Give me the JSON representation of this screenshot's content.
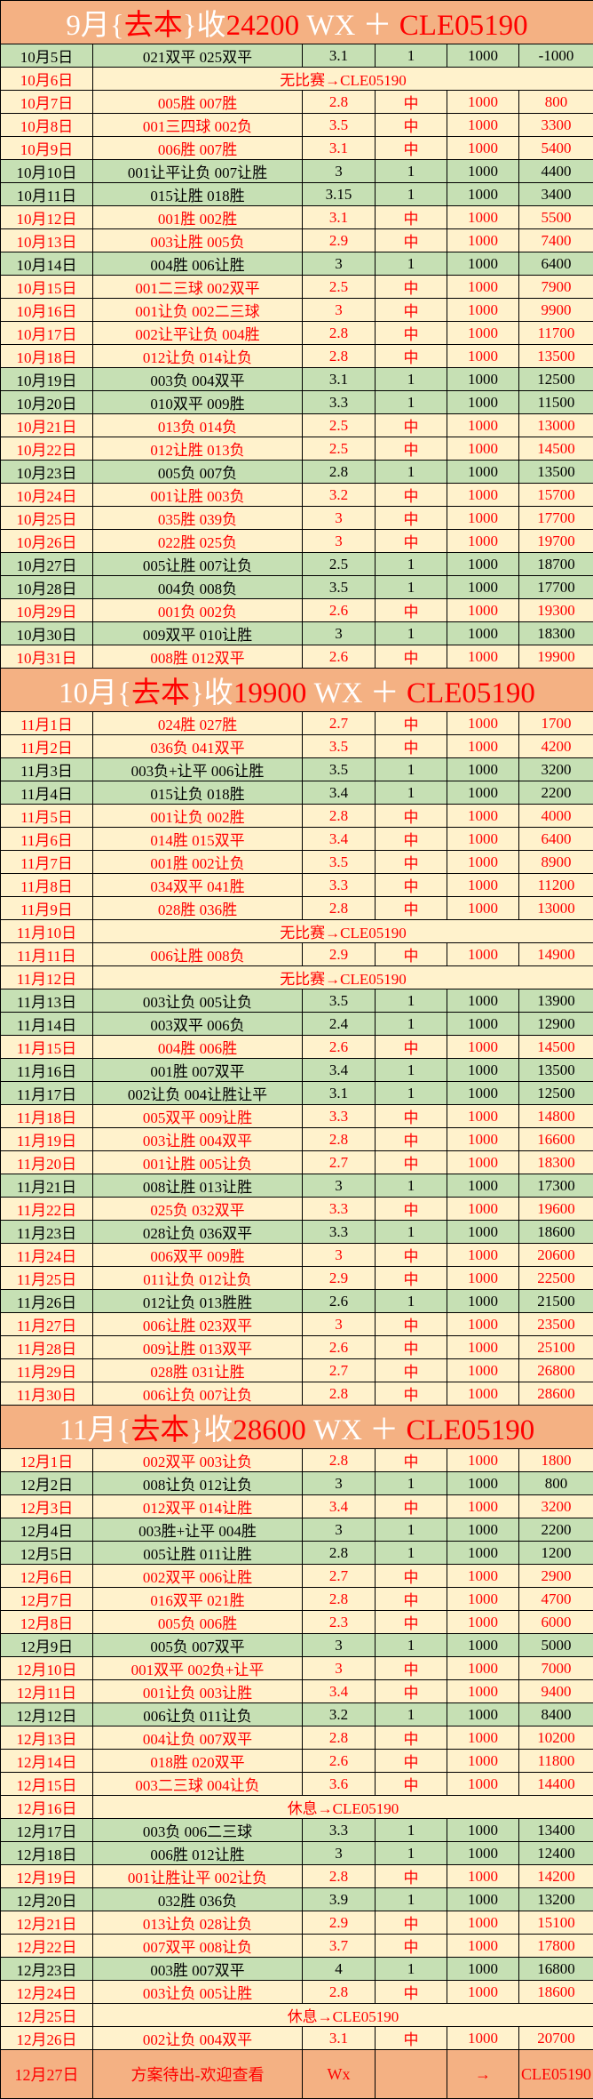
{
  "colors": {
    "header_bg": "#F4B183",
    "win_bg": "#FFF2CC",
    "loss_bg": "#C6E0B4",
    "win_text": "#FF0000",
    "loss_text": "#000000"
  },
  "sections": [
    {
      "title_parts": [
        {
          "t": "9月",
          "c": "white"
        },
        {
          "t": "{",
          "c": "white"
        },
        {
          "t": "去本",
          "c": "red"
        },
        {
          "t": "}收",
          "c": "white"
        },
        {
          "t": "24200",
          "c": "red"
        },
        {
          "t": " WX ＋ ",
          "c": "white"
        },
        {
          "t": "CLE05190",
          "c": "red"
        }
      ],
      "rows": [
        {
          "type": "loss",
          "cells": [
            "10月5日",
            "021双平 025双平",
            "3.1",
            "1",
            "1000",
            "-1000"
          ]
        },
        {
          "type": "note",
          "cells": [
            "10月6日",
            "无比赛→CLE05190"
          ]
        },
        {
          "type": "win",
          "cells": [
            "10月7日",
            "005胜 007胜",
            "2.8",
            "中",
            "1000",
            "800"
          ]
        },
        {
          "type": "win",
          "cells": [
            "10月8日",
            "001三四球 002负",
            "3.5",
            "中",
            "1000",
            "3300"
          ]
        },
        {
          "type": "win",
          "cells": [
            "10月9日",
            "006胜 007胜",
            "3.1",
            "中",
            "1000",
            "5400"
          ]
        },
        {
          "type": "loss",
          "cells": [
            "10月10日",
            "001让平让负 007让胜",
            "3",
            "1",
            "1000",
            "4400"
          ]
        },
        {
          "type": "loss",
          "cells": [
            "10月11日",
            "015让胜 018胜",
            "3.15",
            "1",
            "1000",
            "3400"
          ]
        },
        {
          "type": "win",
          "cells": [
            "10月12日",
            "001胜 002胜",
            "3.1",
            "中",
            "1000",
            "5500"
          ]
        },
        {
          "type": "win",
          "cells": [
            "10月13日",
            "003让胜 005负",
            "2.9",
            "中",
            "1000",
            "7400"
          ]
        },
        {
          "type": "loss",
          "cells": [
            "10月14日",
            "004胜 006让胜",
            "3",
            "1",
            "1000",
            "6400"
          ]
        },
        {
          "type": "win",
          "cells": [
            "10月15日",
            "001二三球 002双平",
            "2.5",
            "中",
            "1000",
            "7900"
          ]
        },
        {
          "type": "win",
          "cells": [
            "10月16日",
            "001让负 002二三球",
            "3",
            "中",
            "1000",
            "9900"
          ]
        },
        {
          "type": "win",
          "cells": [
            "10月17日",
            "002让平让负 004胜",
            "2.8",
            "中",
            "1000",
            "11700"
          ]
        },
        {
          "type": "win",
          "cells": [
            "10月18日",
            "012让负 014让负",
            "2.8",
            "中",
            "1000",
            "13500"
          ]
        },
        {
          "type": "loss",
          "cells": [
            "10月19日",
            "003负 004双平",
            "3.1",
            "1",
            "1000",
            "12500"
          ]
        },
        {
          "type": "loss",
          "cells": [
            "10月20日",
            "010双平 009胜",
            "3.3",
            "1",
            "1000",
            "11500"
          ]
        },
        {
          "type": "win",
          "cells": [
            "10月21日",
            "013负 014负",
            "2.5",
            "中",
            "1000",
            "13000"
          ]
        },
        {
          "type": "win",
          "cells": [
            "10月22日",
            "012让胜 013负",
            "2.5",
            "中",
            "1000",
            "14500"
          ]
        },
        {
          "type": "loss",
          "cells": [
            "10月23日",
            "005负 007负",
            "2.8",
            "1",
            "1000",
            "13500"
          ]
        },
        {
          "type": "win",
          "cells": [
            "10月24日",
            "001让胜 003负",
            "3.2",
            "中",
            "1000",
            "15700"
          ]
        },
        {
          "type": "win",
          "cells": [
            "10月25日",
            "035胜 039负",
            "3",
            "中",
            "1000",
            "17700"
          ]
        },
        {
          "type": "win",
          "cells": [
            "10月26日",
            "022胜 025负",
            "3",
            "中",
            "1000",
            "19700"
          ]
        },
        {
          "type": "loss",
          "cells": [
            "10月27日",
            "005让胜 007让负",
            "2.5",
            "1",
            "1000",
            "18700"
          ]
        },
        {
          "type": "loss",
          "cells": [
            "10月28日",
            "004负 008负",
            "3.5",
            "1",
            "1000",
            "17700"
          ]
        },
        {
          "type": "win",
          "cells": [
            "10月29日",
            "001负 002负",
            "2.6",
            "中",
            "1000",
            "19300"
          ]
        },
        {
          "type": "loss",
          "cells": [
            "10月30日",
            "009双平 010让胜",
            "3",
            "1",
            "1000",
            "18300"
          ]
        },
        {
          "type": "win",
          "cells": [
            "10月31日",
            "008胜 012双平",
            "2.6",
            "中",
            "1000",
            "19900"
          ]
        }
      ]
    },
    {
      "title_parts": [
        {
          "t": "10月",
          "c": "white"
        },
        {
          "t": "{",
          "c": "white"
        },
        {
          "t": "去本",
          "c": "red"
        },
        {
          "t": "}收",
          "c": "white"
        },
        {
          "t": "19900",
          "c": "red"
        },
        {
          "t": " WX ＋ ",
          "c": "white"
        },
        {
          "t": "CLE05190",
          "c": "red"
        }
      ],
      "rows": [
        {
          "type": "win",
          "cells": [
            "11月1日",
            "024胜 027胜",
            "2.7",
            "中",
            "1000",
            "1700"
          ]
        },
        {
          "type": "win",
          "cells": [
            "11月2日",
            "036负 041双平",
            "3.5",
            "中",
            "1000",
            "4200"
          ]
        },
        {
          "type": "loss",
          "cells": [
            "11月3日",
            "003负+让平 006让胜",
            "3.5",
            "1",
            "1000",
            "3200"
          ]
        },
        {
          "type": "loss",
          "cells": [
            "11月4日",
            "015让负 018胜",
            "3.4",
            "1",
            "1000",
            "2200"
          ]
        },
        {
          "type": "win",
          "cells": [
            "11月5日",
            "001让负 002胜",
            "2.8",
            "中",
            "1000",
            "4000"
          ]
        },
        {
          "type": "win",
          "cells": [
            "11月6日",
            "014胜 015双平",
            "3.4",
            "中",
            "1000",
            "6400"
          ]
        },
        {
          "type": "win",
          "cells": [
            "11月7日",
            "001胜 002让负",
            "3.5",
            "中",
            "1000",
            "8900"
          ]
        },
        {
          "type": "win",
          "cells": [
            "11月8日",
            "034双平 041胜",
            "3.3",
            "中",
            "1000",
            "11200"
          ]
        },
        {
          "type": "win",
          "cells": [
            "11月9日",
            "028胜 036胜",
            "2.8",
            "中",
            "1000",
            "13000"
          ]
        },
        {
          "type": "note",
          "cells": [
            "11月10日",
            "无比赛→CLE05190"
          ]
        },
        {
          "type": "win",
          "cells": [
            "11月11日",
            "006让胜 008负",
            "2.9",
            "中",
            "1000",
            "14900"
          ]
        },
        {
          "type": "note",
          "cells": [
            "11月12日",
            "无比赛→CLE05190"
          ]
        },
        {
          "type": "loss",
          "cells": [
            "11月13日",
            "003让负 005让负",
            "3.5",
            "1",
            "1000",
            "13900"
          ]
        },
        {
          "type": "loss",
          "cells": [
            "11月14日",
            "003双平 006负",
            "2.4",
            "1",
            "1000",
            "12900"
          ]
        },
        {
          "type": "win",
          "cells": [
            "11月15日",
            "004胜 006胜",
            "2.6",
            "中",
            "1000",
            "14500"
          ]
        },
        {
          "type": "loss",
          "cells": [
            "11月16日",
            "001胜 007双平",
            "3.4",
            "1",
            "1000",
            "13500"
          ]
        },
        {
          "type": "loss",
          "cells": [
            "11月17日",
            "002让负 004让胜让平",
            "3.1",
            "1",
            "1000",
            "12500"
          ]
        },
        {
          "type": "win",
          "cells": [
            "11月18日",
            "005双平 009让胜",
            "3.3",
            "中",
            "1000",
            "14800"
          ]
        },
        {
          "type": "win",
          "cells": [
            "11月19日",
            "003让胜 004双平",
            "2.8",
            "中",
            "1000",
            "16600"
          ]
        },
        {
          "type": "win",
          "cells": [
            "11月20日",
            "001让胜 005让负",
            "2.7",
            "中",
            "1000",
            "18300"
          ]
        },
        {
          "type": "loss",
          "cells": [
            "11月21日",
            "008让胜 013让胜",
            "3",
            "1",
            "1000",
            "17300"
          ]
        },
        {
          "type": "win",
          "cells": [
            "11月22日",
            "025负 032双平",
            "3.3",
            "中",
            "1000",
            "19600"
          ]
        },
        {
          "type": "loss",
          "cells": [
            "11月23日",
            "028让负 036双平",
            "3.3",
            "1",
            "1000",
            "18600"
          ]
        },
        {
          "type": "win",
          "cells": [
            "11月24日",
            "006双平 009胜",
            "3",
            "中",
            "1000",
            "20600"
          ]
        },
        {
          "type": "win",
          "cells": [
            "11月25日",
            "011让负 012让负",
            "2.9",
            "中",
            "1000",
            "22500"
          ]
        },
        {
          "type": "loss",
          "cells": [
            "11月26日",
            "012让负 013胜胜",
            "2.6",
            "1",
            "1000",
            "21500"
          ]
        },
        {
          "type": "win",
          "cells": [
            "11月27日",
            "006让胜 023双平",
            "3",
            "中",
            "1000",
            "23500"
          ]
        },
        {
          "type": "win",
          "cells": [
            "11月28日",
            "009让胜 013双平",
            "2.6",
            "中",
            "1000",
            "25100"
          ]
        },
        {
          "type": "win",
          "cells": [
            "11月29日",
            "028胜 031让胜",
            "2.7",
            "中",
            "1000",
            "26800"
          ]
        },
        {
          "type": "win",
          "cells": [
            "11月30日",
            "006让负 007让负",
            "2.8",
            "中",
            "1000",
            "28600"
          ]
        }
      ]
    },
    {
      "title_parts": [
        {
          "t": "11月",
          "c": "white"
        },
        {
          "t": "{",
          "c": "white"
        },
        {
          "t": "去本",
          "c": "red"
        },
        {
          "t": "}收",
          "c": "white"
        },
        {
          "t": "28600",
          "c": "red"
        },
        {
          "t": " WX ＋ ",
          "c": "white"
        },
        {
          "t": "CLE05190",
          "c": "red"
        }
      ],
      "rows": [
        {
          "type": "win",
          "cells": [
            "12月1日",
            "002双平 003让负",
            "2.8",
            "中",
            "1000",
            "1800"
          ]
        },
        {
          "type": "loss",
          "cells": [
            "12月2日",
            "008让负 012让负",
            "3",
            "1",
            "1000",
            "800"
          ]
        },
        {
          "type": "win",
          "cells": [
            "12月3日",
            "012双平 014让胜",
            "3.4",
            "中",
            "1000",
            "3200"
          ]
        },
        {
          "type": "loss",
          "cells": [
            "12月4日",
            "003胜+让平 004胜",
            "3",
            "1",
            "1000",
            "2200"
          ]
        },
        {
          "type": "loss",
          "cells": [
            "12月5日",
            "005让胜 011让胜",
            "2.8",
            "1",
            "1000",
            "1200"
          ]
        },
        {
          "type": "win",
          "cells": [
            "12月6日",
            "002双平 006让胜",
            "2.7",
            "中",
            "1000",
            "2900"
          ]
        },
        {
          "type": "win",
          "cells": [
            "12月7日",
            "016双平 021胜",
            "2.8",
            "中",
            "1000",
            "4700"
          ]
        },
        {
          "type": "win",
          "cells": [
            "12月8日",
            "005负 006胜",
            "2.3",
            "中",
            "1000",
            "6000"
          ]
        },
        {
          "type": "loss",
          "cells": [
            "12月9日",
            "005负 007双平",
            "3",
            "1",
            "1000",
            "5000"
          ]
        },
        {
          "type": "win",
          "cells": [
            "12月10日",
            "001双平 002负+让平",
            "3",
            "中",
            "1000",
            "7000"
          ]
        },
        {
          "type": "win",
          "cells": [
            "12月11日",
            "001让负 003让胜",
            "3.4",
            "中",
            "1000",
            "9400"
          ]
        },
        {
          "type": "loss",
          "cells": [
            "12月12日",
            "006让负 011让负",
            "3.2",
            "1",
            "1000",
            "8400"
          ]
        },
        {
          "type": "win",
          "cells": [
            "12月13日",
            "004让负 007双平",
            "2.8",
            "中",
            "1000",
            "10200"
          ]
        },
        {
          "type": "win",
          "cells": [
            "12月14日",
            "018胜 020双平",
            "2.6",
            "中",
            "1000",
            "11800"
          ]
        },
        {
          "type": "win",
          "cells": [
            "12月15日",
            "003二三球 004让负",
            "3.6",
            "中",
            "1000",
            "14400"
          ]
        },
        {
          "type": "note",
          "cells": [
            "12月16日",
            "休息→CLE05190"
          ]
        },
        {
          "type": "loss",
          "cells": [
            "12月17日",
            "003负 006二三球",
            "3.3",
            "1",
            "1000",
            "13400"
          ]
        },
        {
          "type": "loss",
          "cells": [
            "12月18日",
            "006胜 012让胜",
            "3",
            "1",
            "1000",
            "12400"
          ]
        },
        {
          "type": "win",
          "cells": [
            "12月19日",
            "001让胜让平 002让负",
            "2.8",
            "中",
            "1000",
            "14200"
          ]
        },
        {
          "type": "loss",
          "cells": [
            "12月20日",
            "032胜 036负",
            "3.9",
            "1",
            "1000",
            "13200"
          ]
        },
        {
          "type": "win",
          "cells": [
            "12月21日",
            "013让负 028让负",
            "2.9",
            "中",
            "1000",
            "15100"
          ]
        },
        {
          "type": "win",
          "cells": [
            "12月22日",
            "007双平 008让负",
            "3.7",
            "中",
            "1000",
            "17800"
          ]
        },
        {
          "type": "loss",
          "cells": [
            "12月23日",
            "003胜 007双平",
            "4",
            "1",
            "1000",
            "16800"
          ]
        },
        {
          "type": "win",
          "cells": [
            "12月24日",
            "003让负 005让胜",
            "2.8",
            "中",
            "1000",
            "18600"
          ]
        },
        {
          "type": "note",
          "cells": [
            "12月25日",
            "休息→CLE05190"
          ]
        },
        {
          "type": "win",
          "cells": [
            "12月26日",
            "002让负 004双平",
            "3.1",
            "中",
            "1000",
            "20700"
          ]
        },
        {
          "type": "foot",
          "cells": [
            "12月27日",
            "方案待出-欢迎查看",
            "Wx",
            "",
            "→",
            "CLE05190"
          ]
        }
      ]
    }
  ]
}
